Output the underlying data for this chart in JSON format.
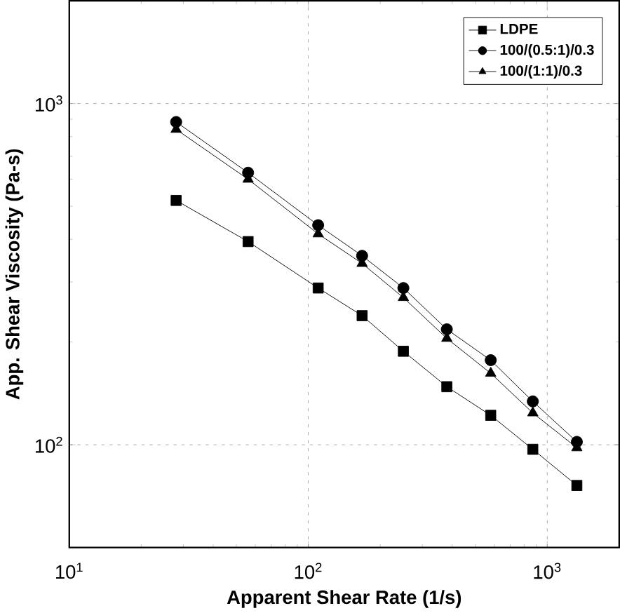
{
  "chart_data": {
    "type": "line",
    "xlabel": "Apparent Shear Rate (1/s)",
    "ylabel": "App. Shear Viscosity (Pa-s)",
    "log": "xy",
    "grid": true,
    "legend": "top right",
    "line_style": "solid",
    "xlim": [
      10,
      2000
    ],
    "ylim": [
      50,
      2000
    ],
    "xticks": [
      {
        "value": 10,
        "label": "10$^{1}$"
      },
      {
        "value": 100,
        "label": "10$^{2}$"
      },
      {
        "value": 1000,
        "label": "10$^{3}$"
      }
    ],
    "yticks": [
      {
        "value": 100,
        "label": "10$^{2}$"
      },
      {
        "value": 1000,
        "label": "10$^{3}$"
      }
    ],
    "x": [
      28,
      56,
      110,
      168,
      250,
      380,
      580,
      870,
      1330
    ],
    "series": [
      {
        "name": "LDPE",
        "color": "#000000",
        "marker": "square",
        "values": [
          520,
          394,
          288,
          239,
          188,
          148,
          122,
          97,
          76
        ]
      },
      {
        "name": "100/(0.5:1)/0.3",
        "color": "#000000",
        "marker": "circle",
        "values": [
          883,
          627,
          440,
          358,
          288,
          218,
          177,
          134,
          102
        ]
      },
      {
        "name": "100/(1:1)/0.3",
        "color": "#000000",
        "marker": "triangle",
        "values": [
          840,
          600,
          415,
          340,
          270,
          205,
          162,
          124,
          98
        ]
      }
    ]
  }
}
